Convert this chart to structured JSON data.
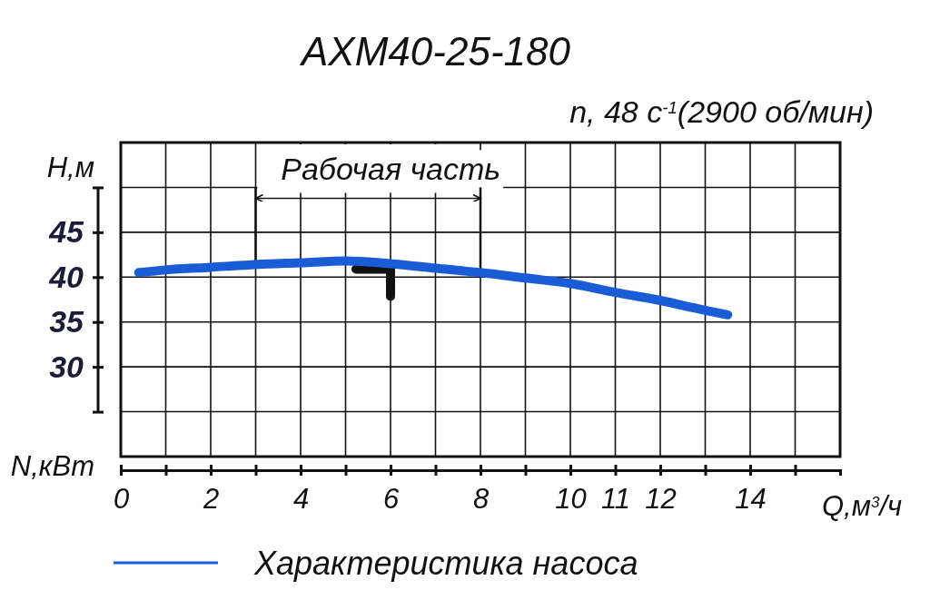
{
  "chart_data": {
    "type": "line",
    "title": "АХМ40-25-180",
    "subtitle": "n, 48 с$^{-1}$(2900 об/мин)",
    "xlabel": "Q,м$^{3}$/ч",
    "ylabel": "Н,м",
    "annotations": [
      "Рабочая часть",
      "N,кВт"
    ],
    "x": [
      0.4,
      1,
      2,
      3,
      4,
      5,
      6,
      7,
      8,
      9,
      10,
      11,
      12,
      13,
      13.5
    ],
    "series": [
      {
        "name": "Характеристика насоса",
        "color": "#1a5bd6",
        "values": [
          40.5,
          40.8,
          41.1,
          41.4,
          41.6,
          41.8,
          41.5,
          41.0,
          40.5,
          39.9,
          39.3,
          38.3,
          37.4,
          36.3,
          35.8
        ]
      }
    ],
    "xlim": [
      0,
      16
    ],
    "xticks": [
      0,
      {
        "value": 1,
        "label": null
      },
      2,
      {
        "value": 3,
        "label": null
      },
      4,
      {
        "value": 5,
        "label": null
      },
      6,
      {
        "value": 7,
        "label": null
      },
      8,
      {
        "value": 9,
        "label": null
      },
      10,
      11,
      12,
      {
        "value": 13,
        "label": null
      },
      14,
      {
        "value": 15,
        "label": null
      }
    ],
    "ylim": [
      20,
      55
    ],
    "yticks": [
      {
        "value": 25,
        "label": null
      },
      30,
      35,
      40,
      45,
      {
        "value": 50,
        "label": null
      }
    ],
    "grid": true,
    "legend": "bottom",
    "ref_lines": [
      {
        "axis": "x",
        "value": 3
      },
      {
        "axis": "x",
        "value": 8
      }
    ]
  }
}
